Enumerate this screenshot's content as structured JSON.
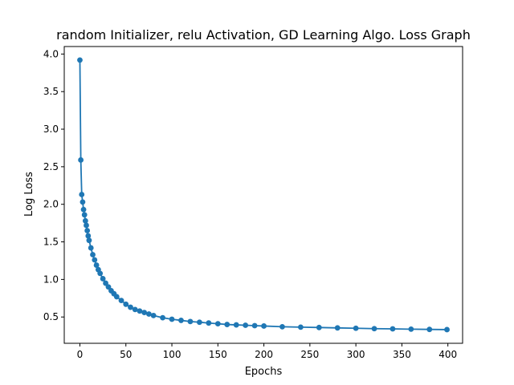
{
  "chart_data": {
    "type": "line",
    "title": "random Initializer, relu Activation, GD Learning Algo. Loss Graph",
    "xlabel": "Epochs",
    "ylabel": "Log Loss",
    "xlim": [
      -17,
      416
    ],
    "ylim": [
      0.15,
      4.1
    ],
    "xticks": [
      0,
      50,
      100,
      150,
      200,
      250,
      300,
      350,
      400
    ],
    "yticks": [
      0.5,
      1.0,
      1.5,
      2.0,
      2.5,
      3.0,
      3.5,
      4.0
    ],
    "xtick_labels": [
      "0",
      "50",
      "100",
      "150",
      "200",
      "250",
      "300",
      "350",
      "400"
    ],
    "ytick_labels": [
      "0.5",
      "1.0",
      "1.5",
      "2.0",
      "2.5",
      "3.0",
      "3.5",
      "4.0"
    ],
    "grid": false,
    "marker": "circle",
    "series": [
      {
        "color": "#1f77b4",
        "x": [
          0,
          1,
          2,
          3,
          4,
          5,
          6,
          7,
          8,
          9,
          10,
          12,
          14,
          16,
          18,
          20,
          22,
          25,
          28,
          31,
          34,
          37,
          40,
          45,
          50,
          55,
          60,
          65,
          70,
          75,
          80,
          90,
          100,
          110,
          120,
          130,
          140,
          150,
          160,
          170,
          180,
          190,
          200,
          220,
          240,
          260,
          280,
          300,
          320,
          340,
          360,
          380,
          399
        ],
        "y": [
          3.92,
          2.59,
          2.13,
          2.03,
          1.93,
          1.86,
          1.78,
          1.72,
          1.65,
          1.58,
          1.52,
          1.42,
          1.33,
          1.26,
          1.19,
          1.13,
          1.08,
          1.01,
          0.95,
          0.9,
          0.85,
          0.81,
          0.77,
          0.72,
          0.67,
          0.63,
          0.6,
          0.58,
          0.56,
          0.54,
          0.52,
          0.49,
          0.47,
          0.455,
          0.44,
          0.43,
          0.42,
          0.41,
          0.4,
          0.395,
          0.39,
          0.385,
          0.38,
          0.37,
          0.365,
          0.36,
          0.355,
          0.35,
          0.345,
          0.342,
          0.338,
          0.335,
          0.332
        ]
      }
    ]
  }
}
